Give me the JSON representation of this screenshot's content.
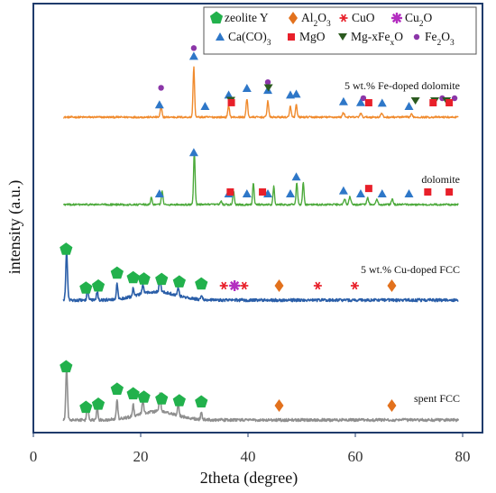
{
  "chart_data": {
    "type": "line",
    "xlabel": "2theta (degree)",
    "ylabel": "intensity (a.u.)",
    "xlim": [
      0,
      80
    ],
    "x_ticks": [
      0,
      20,
      40,
      60,
      80
    ],
    "grid": false,
    "legend_position": "top-right",
    "legend": [
      {
        "id": "zeolite",
        "label": "zeolite Y",
        "marker": "pentagon",
        "color": "#22b14c"
      },
      {
        "id": "al2o3",
        "label": "Al2O3",
        "marker": "diamond",
        "color": "#e2711d"
      },
      {
        "id": "cuo",
        "label": "CuO",
        "marker": "asterisk",
        "color": "#e8202a"
      },
      {
        "id": "cu2o",
        "label": "Cu2O",
        "marker": "star",
        "color": "#b32ec0"
      },
      {
        "id": "caco3",
        "label": "Ca(CO)3",
        "marker": "triangle",
        "color": "#2e77c8"
      },
      {
        "id": "mgo",
        "label": "MgO",
        "marker": "square",
        "color": "#e8202a"
      },
      {
        "id": "mgfe",
        "label": "Mg-xFexO",
        "marker": "triangle-down",
        "color": "#2b5a1f"
      },
      {
        "id": "fe2o3",
        "label": "Fe2O3",
        "marker": "circle",
        "color": "#8b36a8"
      }
    ],
    "series": [
      {
        "name": "5 wt.% Fe-doped dolomite",
        "color": "#f08a2c",
        "baseline": 0.0,
        "noise": 0.9,
        "peaks": [
          [
            23.8,
            11,
            0.22
          ],
          [
            29.9,
            53,
            0.2
          ],
          [
            36.4,
            12,
            0.22
          ],
          [
            39.8,
            19,
            0.22
          ],
          [
            43.7,
            17,
            0.22
          ],
          [
            47.9,
            12,
            0.2
          ],
          [
            49.0,
            13,
            0.2
          ],
          [
            57.8,
            5,
            0.25
          ],
          [
            61.0,
            4,
            0.25
          ],
          [
            64.9,
            4,
            0.25
          ],
          [
            70.5,
            3,
            0.25
          ]
        ],
        "markers": [
          {
            "type": "caco3",
            "x": [
              23.5,
              29.9,
              32.0,
              36.4,
              39.8,
              43.7,
              47.9,
              49.0,
              57.8,
              61.0,
              65.0,
              70.0
            ]
          },
          {
            "type": "fe2o3",
            "x": [
              23.8,
              29.9,
              43.7,
              61.5,
              76.2,
              78.5
            ]
          },
          {
            "type": "mgfe",
            "x": [
              36.8,
              43.8,
              71.2,
              74.8,
              77.0
            ]
          },
          {
            "type": "mgo",
            "x": [
              36.9,
              62.5,
              74.5,
              77.5
            ]
          }
        ]
      },
      {
        "name": "dolomite",
        "color": "#4daa3c",
        "baseline": 0.0,
        "noise": 0.9,
        "peaks": [
          [
            22.0,
            8,
            0.2
          ],
          [
            24.0,
            15,
            0.2
          ],
          [
            30.0,
            56,
            0.2
          ],
          [
            35.0,
            4,
            0.2
          ],
          [
            37.3,
            15,
            0.2
          ],
          [
            41.0,
            22,
            0.2
          ],
          [
            44.8,
            19,
            0.2
          ],
          [
            49.1,
            23,
            0.2
          ],
          [
            50.3,
            24,
            0.2
          ],
          [
            58.0,
            6,
            0.25
          ],
          [
            59.0,
            8,
            0.25
          ],
          [
            62.3,
            7,
            0.25
          ],
          [
            64.0,
            5,
            0.25
          ],
          [
            66.9,
            6,
            0.25
          ]
        ],
        "markers": [
          {
            "type": "caco3",
            "x": [
              23.5,
              29.9,
              36.4,
              39.8,
              43.7,
              47.9,
              49.0,
              57.8,
              61.0,
              65.0,
              70.0
            ]
          },
          {
            "type": "mgo",
            "x": [
              36.7,
              42.7,
              62.5,
              73.5,
              77.5
            ]
          }
        ]
      },
      {
        "name": "5 wt.% Cu-doped FCC",
        "color": "#2a5ea8",
        "baseline": 0.0,
        "noise": 1.4,
        "peaks": [
          [
            6.2,
            52,
            0.22
          ],
          [
            10.1,
            12,
            0.2
          ],
          [
            11.9,
            9,
            0.2
          ],
          [
            15.6,
            16,
            0.2
          ],
          [
            18.6,
            8,
            0.2
          ],
          [
            20.4,
            10,
            0.2
          ],
          [
            23.6,
            16,
            0.2
          ],
          [
            27.0,
            9,
            0.2
          ],
          [
            31.3,
            5,
            0.2
          ]
        ],
        "markers": [
          {
            "type": "zeolite",
            "x": [
              6.1,
              9.8,
              12.1,
              15.6,
              18.6,
              20.6,
              23.9,
              27.2,
              31.3
            ]
          },
          {
            "type": "cuo",
            "x": [
              35.5,
              39.3,
              53.0,
              59.9
            ]
          },
          {
            "type": "cu2o",
            "x": [
              37.5
            ]
          },
          {
            "type": "al2o3",
            "x": [
              45.8,
              66.8
            ]
          }
        ]
      },
      {
        "name": "spent FCC",
        "color": "#8f8f8f",
        "baseline": 0.0,
        "noise": 1.4,
        "peaks": [
          [
            6.2,
            55,
            0.22
          ],
          [
            10.1,
            18,
            0.2
          ],
          [
            11.9,
            14,
            0.2
          ],
          [
            15.6,
            20,
            0.2
          ],
          [
            18.6,
            12,
            0.2
          ],
          [
            20.4,
            15,
            0.2
          ],
          [
            23.6,
            20,
            0.2
          ],
          [
            27.0,
            12,
            0.2
          ],
          [
            31.3,
            7,
            0.2
          ]
        ],
        "markers": [
          {
            "type": "zeolite",
            "x": [
              6.1,
              9.8,
              12.1,
              15.6,
              18.6,
              20.6,
              23.9,
              27.2,
              31.3
            ]
          },
          {
            "type": "al2o3",
            "x": [
              45.8,
              66.8
            ]
          }
        ]
      }
    ]
  }
}
